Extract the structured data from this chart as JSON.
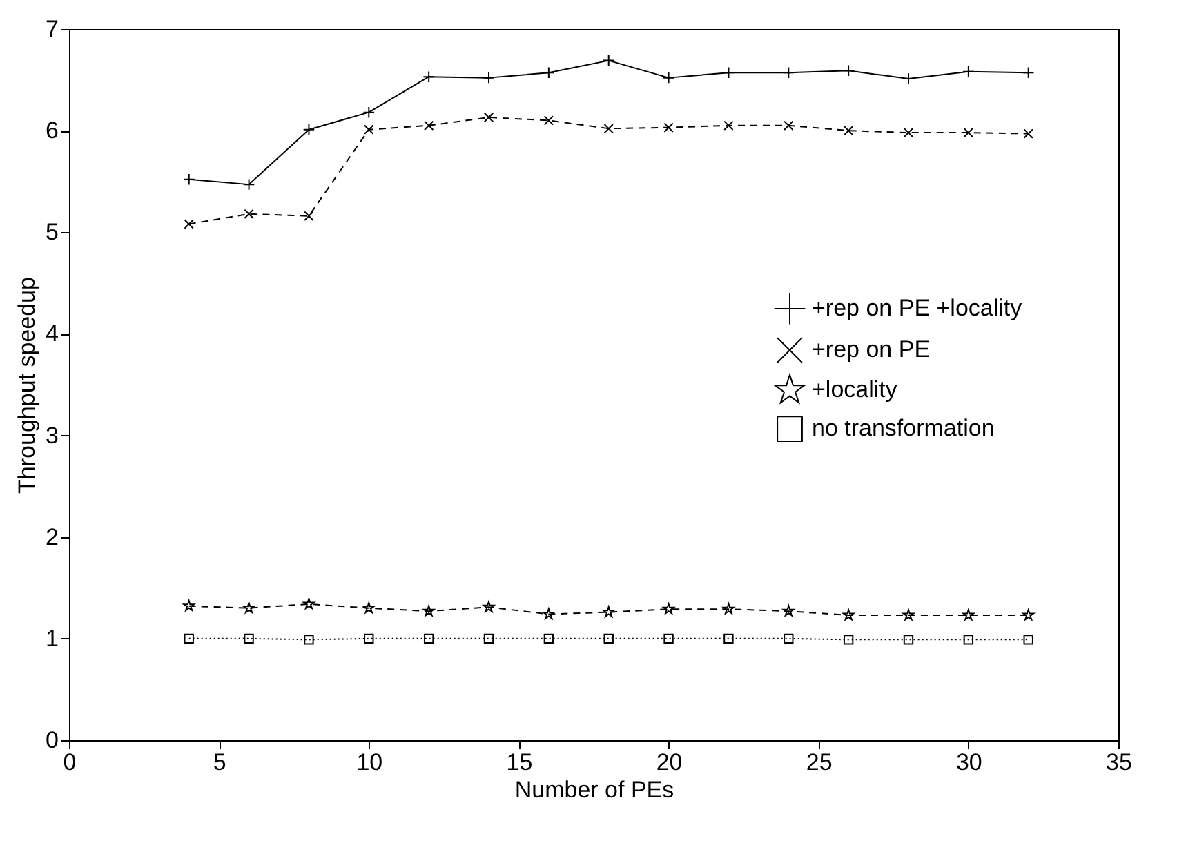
{
  "chart_data": {
    "type": "line",
    "xlabel": "Number of PEs",
    "ylabel": "Throughput speedup",
    "x": [
      4,
      6,
      8,
      10,
      12,
      14,
      16,
      18,
      20,
      22,
      24,
      26,
      28,
      30,
      32
    ],
    "series": [
      {
        "name": "+rep on PE +locality",
        "color": "#000000",
        "marker": "cross",
        "line_style": "solid",
        "values": [
          5.52,
          5.47,
          6.01,
          6.18,
          6.53,
          6.52,
          6.57,
          6.69,
          6.52,
          6.57,
          6.57,
          6.59,
          6.51,
          6.58,
          6.57
        ]
      },
      {
        "name": "+rep on PE",
        "color": "#000000",
        "marker": "x",
        "line_style": "dashed",
        "values": [
          5.08,
          5.18,
          5.16,
          6.01,
          6.05,
          6.13,
          6.1,
          6.02,
          6.03,
          6.05,
          6.05,
          6.0,
          5.98,
          5.98,
          5.97
        ]
      },
      {
        "name": "+locality",
        "color": "#000000",
        "marker": "star",
        "line_style": "dashed",
        "values": [
          1.32,
          1.3,
          1.34,
          1.3,
          1.27,
          1.31,
          1.24,
          1.26,
          1.29,
          1.29,
          1.27,
          1.23,
          1.23,
          1.23,
          1.23
        ]
      },
      {
        "name": "no transformation",
        "color": "#000000",
        "marker": "square",
        "line_style": "dotted",
        "values": [
          1.0,
          1.0,
          0.99,
          1.0,
          1.0,
          1.0,
          1.0,
          1.0,
          1.0,
          1.0,
          1.0,
          0.99,
          0.99,
          0.99,
          0.99
        ]
      }
    ],
    "xlim": [
      0,
      35
    ],
    "xticks": [
      0,
      5,
      10,
      15,
      20,
      25,
      30,
      35
    ],
    "ylim": [
      0,
      7
    ],
    "yticks": [
      0,
      1,
      2,
      3,
      4,
      5,
      6,
      7
    ],
    "legend": "right",
    "grid": false
  }
}
